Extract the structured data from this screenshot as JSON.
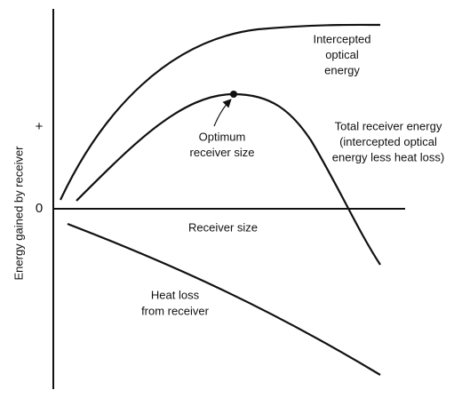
{
  "axes": {
    "y_label": "Energy gained by receiver",
    "y_plus": "+",
    "y_zero": "0",
    "x_label": "Receiver size"
  },
  "curves": [
    {
      "label": [
        "Intercepted",
        "optical",
        "energy"
      ]
    },
    {
      "label": [
        "Total receiver energy",
        "(intercepted optical",
        "energy less heat loss)"
      ]
    },
    {
      "label": [
        "Heat loss",
        "from receiver"
      ]
    }
  ],
  "annotation": [
    "Optimum",
    "receiver size"
  ]
}
